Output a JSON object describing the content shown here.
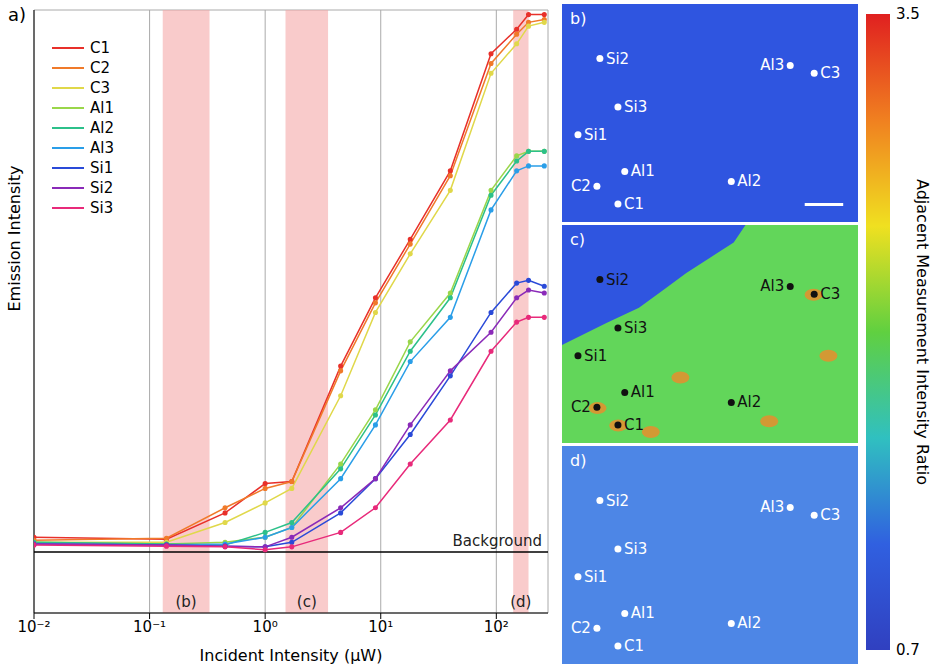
{
  "chart_data": {
    "type": "line",
    "panel": "a)",
    "x_label": "Incident Intensity (µW)",
    "y_label": "Emission Intensity",
    "x": [
      0.01,
      0.14,
      0.45,
      1.0,
      1.7,
      4.5,
      9,
      18,
      40,
      90,
      150,
      190,
      260
    ],
    "series": [
      {
        "name": "C1",
        "color": "#e8302a",
        "values": [
          0.325,
          0.319,
          0.408,
          0.537,
          0.547,
          1.61,
          3.05,
          5.27,
          10.0,
          29.9,
          37.6,
          43.1,
          43.1
        ]
      },
      {
        "name": "C2",
        "color": "#f07a2a",
        "values": [
          0.316,
          0.322,
          0.428,
          0.513,
          0.547,
          1.54,
          2.91,
          5.04,
          9.55,
          27.3,
          35.9,
          40.1,
          41.2
        ]
      },
      {
        "name": "C3",
        "color": "#e0d84a",
        "values": [
          0.31,
          0.31,
          0.373,
          0.448,
          0.513,
          1.22,
          2.66,
          4.6,
          8.33,
          24.9,
          32.8,
          38.7,
          40.1
        ]
      },
      {
        "name": "Al1",
        "color": "#9ad64a",
        "values": [
          0.31,
          0.305,
          0.31,
          0.325,
          0.356,
          0.645,
          1.07,
          2.02,
          3.19,
          8.33,
          11.5,
          12.0,
          12.0
        ]
      },
      {
        "name": "Al2",
        "color": "#2cc08a",
        "values": [
          0.31,
          0.305,
          0.302,
          0.34,
          0.373,
          0.616,
          1.02,
          1.85,
          3.05,
          7.96,
          10.96,
          12.0,
          12.0
        ]
      },
      {
        "name": "Al3",
        "color": "#2a9ee8",
        "values": [
          0.305,
          0.302,
          0.305,
          0.325,
          0.356,
          0.562,
          0.929,
          1.68,
          2.54,
          6.94,
          10.0,
          10.47,
          10.47
        ]
      },
      {
        "name": "Si1",
        "color": "#2a4ad8",
        "values": [
          0.305,
          0.302,
          0.299,
          0.297,
          0.31,
          0.408,
          0.562,
          0.849,
          1.47,
          2.66,
          3.5,
          3.59,
          3.4
        ]
      },
      {
        "name": "Si2",
        "color": "#8a2ab8",
        "values": [
          0.305,
          0.302,
          0.299,
          0.297,
          0.325,
          0.428,
          0.562,
          0.929,
          1.54,
          2.21,
          3.05,
          3.28,
          3.19
        ]
      },
      {
        "name": "Si3",
        "color": "#e82a7a",
        "values": [
          0.302,
          0.299,
          0.297,
          0.289,
          0.297,
          0.34,
          0.428,
          0.645,
          0.973,
          1.85,
          2.43,
          2.54,
          2.54
        ]
      }
    ],
    "xlim": [
      0.01,
      280
    ],
    "xticks": [
      {
        "value": 0.01,
        "label": "10⁻²"
      },
      {
        "value": 0.1,
        "label": "10⁻¹"
      },
      {
        "value": 1,
        "label": "10⁰"
      },
      {
        "value": 10,
        "label": "10¹"
      },
      {
        "value": 100,
        "label": "10²"
      }
    ],
    "ylim": [
      0.16,
      45
    ],
    "yticks": [
      1,
      10
    ],
    "log": true,
    "grid": true,
    "legend": "upper left",
    "tick_labels": "x",
    "marker": "circle",
    "regions": [
      {
        "label": "(b)",
        "x": [
          0.13,
          0.33
        ]
      },
      {
        "label": "(c)",
        "x": [
          1.5,
          3.5
        ]
      },
      {
        "label": "(d)",
        "x": [
          140,
          190
        ]
      }
    ],
    "reference_lines": [
      {
        "label": "Background",
        "y": 0.283
      }
    ]
  },
  "images": {
    "panels": [
      {
        "letter": "b)",
        "points": [
          "Si2",
          "Si3",
          "Si1",
          "Al1",
          "C2",
          "C1",
          "Al2",
          "Al3",
          "C3"
        ]
      },
      {
        "letter": "c)",
        "points": [
          "Si2",
          "Si3",
          "Si1",
          "Al1",
          "C2",
          "C1",
          "Al2",
          "Al3",
          "C3"
        ]
      },
      {
        "letter": "d)",
        "points": [
          "Si2",
          "Si3",
          "Si1",
          "Al1",
          "C2",
          "C1",
          "Al2",
          "Al3",
          "C3"
        ]
      }
    ],
    "colorbar": {
      "label": "Adjacent Measurement Intensity Ratio",
      "range": [
        0.7,
        3.5
      ],
      "ticks": [
        0.7,
        3.5
      ]
    }
  }
}
